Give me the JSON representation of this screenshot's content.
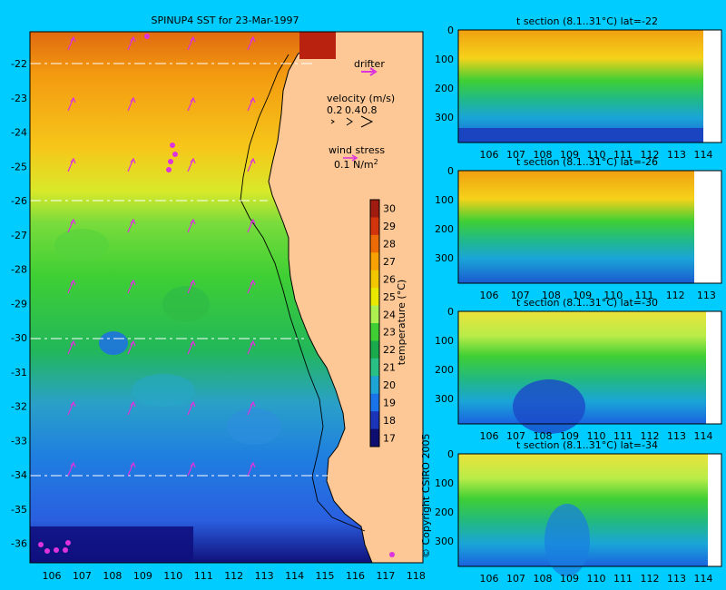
{
  "map": {
    "title": "SPINUP4 SST for 23-Mar-1997",
    "lat_ticks": [
      "-22",
      "-23",
      "-24",
      "-25",
      "-26",
      "-27",
      "-28",
      "-29",
      "-30",
      "-31",
      "-32",
      "-33",
      "-34",
      "-35",
      "-36"
    ],
    "lon_ticks": [
      "106",
      "107",
      "108",
      "109",
      "110",
      "111",
      "112",
      "113",
      "114",
      "115",
      "116",
      "117",
      "118"
    ],
    "section_latitudes": [
      "-22",
      "-26",
      "-30",
      "-34"
    ],
    "legend": {
      "drifter": "drifter",
      "velocity_title": "velocity (m/s)",
      "velocity_scale": [
        "0.2",
        "0.4",
        "0.8"
      ],
      "wind_title": "wind stress",
      "wind_value": "0.1 N/m",
      "wind_exp": "2"
    },
    "colorbar": {
      "label": "temperature (°C)",
      "ticks": [
        "30",
        "29",
        "28",
        "27",
        "26",
        "25",
        "24",
        "23",
        "22",
        "21",
        "20",
        "19",
        "18",
        "17"
      ],
      "colors": [
        "#a01b10",
        "#d2350d",
        "#ec6b07",
        "#f7a102",
        "#f2c700",
        "#e9e900",
        "#aef050",
        "#3fcf34",
        "#1aa94d",
        "#2abf85",
        "#1ea4d2",
        "#1a73e8",
        "#1c35b8",
        "#0e0e70"
      ]
    },
    "copyright": "© Copyright CSIRO 2005",
    "colors": {
      "land": "#fdc896",
      "frame": "#00ccff",
      "arrow": "#dd33dd",
      "coast": "#000000"
    }
  },
  "sections": [
    {
      "title": "t section (8.1..31°C) lat=-22",
      "x_ticks": [
        "106",
        "107",
        "108",
        "109",
        "110",
        "111",
        "112",
        "113",
        "114"
      ],
      "y_ticks": [
        "0",
        "100",
        "200",
        "300"
      ]
    },
    {
      "title": "t section (8.1..31°C) lat=-26",
      "x_ticks": [
        "106",
        "107",
        "108",
        "109",
        "110",
        "111",
        "112",
        "113"
      ],
      "y_ticks": [
        "0",
        "100",
        "200",
        "300"
      ]
    },
    {
      "title": "t section (8.1..31°C) lat=-30",
      "x_ticks": [
        "106",
        "107",
        "108",
        "109",
        "110",
        "111",
        "112",
        "113",
        "114"
      ],
      "y_ticks": [
        "0",
        "100",
        "200",
        "300"
      ]
    },
    {
      "title": "t section (8.1..31°C) lat=-34",
      "x_ticks": [
        "106",
        "107",
        "108",
        "109",
        "110",
        "111",
        "112",
        "113",
        "114"
      ],
      "y_ticks": [
        "0",
        "100",
        "200",
        "300"
      ]
    }
  ]
}
